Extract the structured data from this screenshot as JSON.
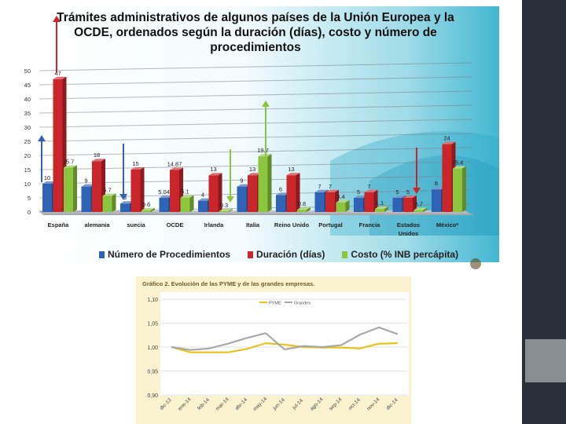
{
  "colors": {
    "procedimientos": "#2f63b5",
    "duracion": "#c9252b",
    "costo": "#8cc63f",
    "pyme_line": "#e8c41a",
    "grandes_line": "#a8a8a8",
    "sidebar": "#2a3038"
  },
  "chart1": {
    "title": "Trámites administrativos de algunos países de la Unión Europea y la OCDE, ordenados según la duración (días), costo y número de procedimientos",
    "legend": [
      "Número de Procedimientos",
      "Duración (días)",
      "Costo (% INB percápita)"
    ]
  },
  "chart2": {
    "title": "Gráfico 2. Evolución de las PYME y de las grandes empresas."
  },
  "chart_data": [
    {
      "type": "bar",
      "title": "Trámites administrativos de algunos países de la Unión Europea y la OCDE, ordenados según la duración (días), costo y número de procedimientos",
      "categories": [
        "España",
        "alemania",
        "suecia",
        "OCDE",
        "Irlanda",
        "Italia",
        "Reino Unido",
        "Portugal",
        "Francia",
        "Estados Unidos",
        "México*"
      ],
      "series": [
        {
          "name": "Número de Procedimientos",
          "values": [
            10,
            9,
            3,
            5.04,
            4,
            9,
            6,
            7,
            5,
            5,
            8
          ],
          "labels": [
            "10",
            "9",
            "3",
            "5.04",
            "4",
            "9",
            "6",
            "7",
            "5",
            "5",
            "8"
          ]
        },
        {
          "name": "Duración (días)",
          "values": [
            47,
            18,
            15,
            14.87,
            13,
            13,
            13,
            7,
            7,
            5,
            24
          ],
          "labels": [
            "47",
            "18",
            "15",
            "14.87",
            "13",
            "13",
            "13",
            "7",
            "7",
            "5",
            "24"
          ]
        },
        {
          "name": "Costo (% INB percápita)",
          "values": [
            15.7,
            5.7,
            0.6,
            5.1,
            0.3,
            19.7,
            0.8,
            3.4,
            1.1,
            0.7,
            15.4
          ],
          "labels": [
            "15.7",
            "5.7",
            "0.6",
            "5.1",
            "0.3",
            "19.7",
            "0.8",
            "3.4",
            "1.1",
            "0.7",
            "15.4"
          ]
        }
      ],
      "yticks": [
        "0",
        "5",
        "10",
        "15",
        "20",
        "25",
        "30",
        "35",
        "40",
        "45",
        "50"
      ],
      "ylim": [
        0,
        50
      ],
      "annotations": {
        "arrows_up": [
          "España",
          "Italia"
        ],
        "arrows_down": [
          "suecia",
          "Irlanda",
          "Estados Unidos"
        ]
      }
    },
    {
      "type": "line",
      "title": "Gráfico 2. Evolución de las PYME y de las grandes empresas.",
      "categories": [
        "dic-13",
        "ene-14",
        "feb-14",
        "mar-14",
        "abr-14",
        "may-14",
        "jun-14",
        "jul-14",
        "ago-14",
        "sep-14",
        "oct-14",
        "nov-14",
        "dic-14"
      ],
      "series": [
        {
          "name": "PYME",
          "values": [
            1.0,
            0.989,
            0.989,
            0.989,
            0.996,
            1.008,
            1.005,
            1.0,
            0.999,
            0.999,
            0.997,
            1.007,
            1.008
          ]
        },
        {
          "name": "Grandes",
          "values": [
            1.0,
            0.994,
            0.997,
            1.007,
            1.019,
            1.029,
            0.995,
            1.002,
            1.0,
            1.004,
            1.026,
            1.041,
            1.027
          ]
        }
      ],
      "yticks": [
        "0,90",
        "0,95",
        "1,00",
        "1,05",
        "1,10"
      ],
      "ylim": [
        0.9,
        1.1
      ]
    }
  ]
}
